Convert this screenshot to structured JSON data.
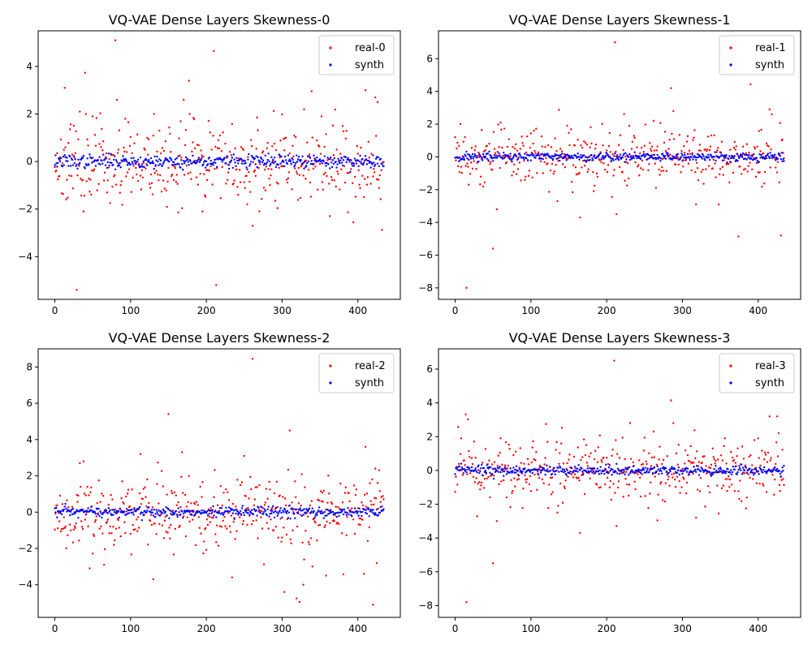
{
  "chart_data": [
    {
      "type": "scatter",
      "title": "VQ-VAE Dense Layers Skewness-0",
      "xlabel": "",
      "ylabel": "",
      "xlim": [
        -22,
        456
      ],
      "ylim": [
        -5.8,
        5.5
      ],
      "xticks": [
        0,
        100,
        200,
        300,
        400
      ],
      "yticks": [
        -4,
        -2,
        0,
        2,
        4
      ],
      "grid": false,
      "legend_position": "top-right",
      "n_points": 435,
      "series": [
        {
          "name": "real-0",
          "color": "#ff0000",
          "spread": 0.85,
          "seed": 11,
          "outliers": [
            [
              13,
              3.1
            ],
            [
              29,
              -5.4
            ],
            [
              33,
              2.1
            ],
            [
              38,
              -2.1
            ],
            [
              41,
              2.0
            ],
            [
              50,
              1.9
            ],
            [
              80,
              5.1
            ],
            [
              93,
              1.8
            ],
            [
              131,
              2.0
            ],
            [
              170,
              2.6
            ],
            [
              177,
              3.4
            ],
            [
              178,
              2.0
            ],
            [
              195,
              -2.1
            ],
            [
              210,
              4.65
            ],
            [
              213,
              -5.2
            ],
            [
              261,
              -2.7
            ],
            [
              329,
              2.2
            ],
            [
              352,
              1.9
            ],
            [
              363,
              -2.3
            ],
            [
              410,
              3.0
            ],
            [
              423,
              2.7
            ],
            [
              426,
              2.5
            ]
          ]
        },
        {
          "name": "synth",
          "color": "#0000ff",
          "spread": 0.14,
          "seed": 37,
          "outliers": []
        }
      ]
    },
    {
      "type": "scatter",
      "title": "VQ-VAE Dense Layers Skewness-1",
      "xlabel": "",
      "ylabel": "",
      "xlim": [
        -22,
        456
      ],
      "ylim": [
        -8.7,
        7.7
      ],
      "xticks": [
        0,
        100,
        200,
        300,
        400
      ],
      "yticks": [
        -8,
        -6,
        -4,
        -2,
        0,
        2,
        4,
        6
      ],
      "grid": false,
      "legend_position": "top-right",
      "n_points": 435,
      "series": [
        {
          "name": "real-1",
          "color": "#ff0000",
          "spread": 0.85,
          "seed": 53,
          "outliers": [
            [
              15,
              -8.0
            ],
            [
              50,
              -5.6
            ],
            [
              55,
              -3.2
            ],
            [
              60,
              2.1
            ],
            [
              135,
              -2.7
            ],
            [
              148,
              1.9
            ],
            [
              165,
              -3.7
            ],
            [
              211,
              7.0
            ],
            [
              213,
              -3.5
            ],
            [
              262,
              2.2
            ],
            [
              285,
              4.2
            ],
            [
              288,
              2.8
            ],
            [
              318,
              -2.9
            ],
            [
              348,
              -2.9
            ],
            [
              418,
              2.6
            ],
            [
              415,
              2.9
            ],
            [
              430,
              -4.8
            ]
          ]
        },
        {
          "name": "synth",
          "color": "#0000ff",
          "spread": 0.14,
          "seed": 71,
          "outliers": []
        }
      ]
    },
    {
      "type": "scatter",
      "title": "VQ-VAE Dense Layers Skewness-2",
      "xlabel": "",
      "ylabel": "",
      "xlim": [
        -22,
        456
      ],
      "ylim": [
        -5.8,
        9.0
      ],
      "xticks": [
        0,
        100,
        200,
        300,
        400
      ],
      "yticks": [
        -4,
        -2,
        0,
        2,
        4,
        6,
        8
      ],
      "grid": false,
      "legend_position": "top-right",
      "n_points": 435,
      "series": [
        {
          "name": "real-2",
          "color": "#ff0000",
          "spread": 1.0,
          "seed": 89,
          "outliers": [
            [
              33,
              2.7
            ],
            [
              38,
              2.8
            ],
            [
              46,
              -3.1
            ],
            [
              65,
              -2.9
            ],
            [
              113,
              3.2
            ],
            [
              130,
              -3.7
            ],
            [
              168,
              3.3
            ],
            [
              250,
              3.1
            ],
            [
              261,
              8.45
            ],
            [
              303,
              -4.4
            ],
            [
              310,
              4.5
            ],
            [
              323,
              -4.95
            ],
            [
              328,
              -4.0
            ],
            [
              340,
              -3.0
            ],
            [
              358,
              -3.5
            ],
            [
              408,
              -3.4
            ],
            [
              410,
              3.6
            ],
            [
              420,
              -5.1
            ],
            [
              423,
              2.4
            ]
          ]
        },
        {
          "name": "synth",
          "color": "#0000ff",
          "spread": 0.15,
          "seed": 97,
          "outliers": []
        }
      ]
    },
    {
      "type": "scatter",
      "title": "VQ-VAE Dense Layers Skewness-3",
      "xlabel": "",
      "ylabel": "",
      "xlim": [
        -22,
        456
      ],
      "ylim": [
        -8.7,
        7.2
      ],
      "xticks": [
        0,
        100,
        200,
        300,
        400
      ],
      "yticks": [
        -8,
        -6,
        -4,
        -2,
        0,
        2,
        4,
        6
      ],
      "grid": false,
      "legend_position": "top-right",
      "n_points": 435,
      "series": [
        {
          "name": "real-3",
          "color": "#ff0000",
          "spread": 0.85,
          "seed": 101,
          "outliers": [
            [
              8,
              1.9
            ],
            [
              15,
              -7.8
            ],
            [
              50,
              -5.5
            ],
            [
              55,
              -3.0
            ],
            [
              60,
              1.9
            ],
            [
              135,
              -2.5
            ],
            [
              165,
              -3.7
            ],
            [
              210,
              6.5
            ],
            [
              213,
              -3.3
            ],
            [
              262,
              2.3
            ],
            [
              285,
              4.15
            ],
            [
              288,
              2.8
            ],
            [
              318,
              -2.8
            ],
            [
              415,
              3.2
            ],
            [
              425,
              3.2
            ],
            [
              400,
              1.9
            ]
          ]
        },
        {
          "name": "synth",
          "color": "#0000ff",
          "spread": 0.14,
          "seed": 113,
          "outliers": []
        }
      ]
    }
  ]
}
